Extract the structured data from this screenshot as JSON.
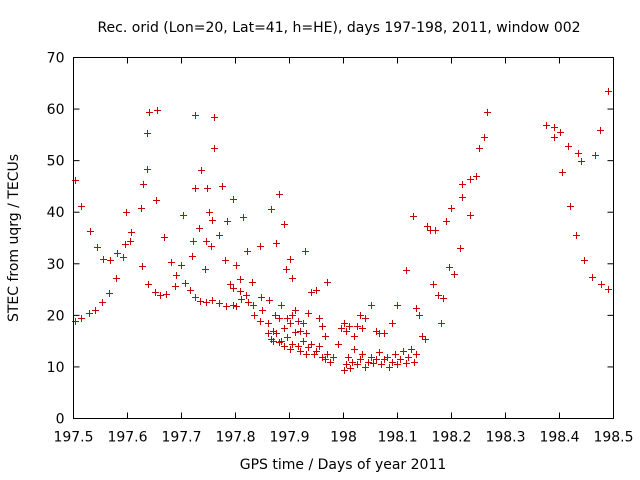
{
  "chart_data": {
    "type": "scatter",
    "title": "Rec. orid (Lon=20, Lat=41, h=HE), days 197-198, 2011, window 002",
    "xlabel": "GPS time / Days of year 2011",
    "ylabel": "STEC from uqrg / TECUs",
    "xlim": [
      197.5,
      198.5
    ],
    "ylim": [
      0,
      70
    ],
    "xticks": [
      197.5,
      197.6,
      197.7,
      197.8,
      197.9,
      198.0,
      198.1,
      198.2,
      198.3,
      198.4,
      198.5
    ],
    "xtick_labels": [
      "197.5",
      "197.6",
      "197.7",
      "197.8",
      "197.9",
      "198",
      "198.1",
      "198.2",
      "198.3",
      "198.4",
      "198.5"
    ],
    "yticks": [
      0,
      10,
      20,
      30,
      40,
      50,
      60,
      70
    ],
    "ytick_labels": [
      "0",
      "10",
      "20",
      "30",
      "40",
      "50",
      "60",
      "70"
    ],
    "marker": "+",
    "color": "#cc0000",
    "series": [
      {
        "name": "STEC",
        "points": [
          [
            197.502,
            46.2
          ],
          [
            197.513,
            41.3
          ],
          [
            197.53,
            36.3
          ],
          [
            197.543,
            33.3
          ],
          [
            197.555,
            31.0
          ],
          [
            197.568,
            30.7
          ],
          [
            197.58,
            32.0
          ],
          [
            197.592,
            31.3
          ],
          [
            197.595,
            33.8
          ],
          [
            197.597,
            40.0
          ],
          [
            197.605,
            34.5
          ],
          [
            197.607,
            36.2
          ],
          [
            197.625,
            40.8
          ],
          [
            197.628,
            45.4
          ],
          [
            197.637,
            48.4
          ],
          [
            197.637,
            55.4
          ],
          [
            197.64,
            59.5
          ],
          [
            197.655,
            59.8
          ],
          [
            197.652,
            42.3
          ],
          [
            197.667,
            35.2
          ],
          [
            197.68,
            30.3
          ],
          [
            197.627,
            29.5
          ],
          [
            197.638,
            26.0
          ],
          [
            197.65,
            24.5
          ],
          [
            197.66,
            24.0
          ],
          [
            197.672,
            24.2
          ],
          [
            197.502,
            19.0
          ],
          [
            197.513,
            19.5
          ],
          [
            197.528,
            20.4
          ],
          [
            197.54,
            21.0
          ],
          [
            197.553,
            22.5
          ],
          [
            197.565,
            24.3
          ],
          [
            197.578,
            27.2
          ],
          [
            197.688,
            25.7
          ],
          [
            197.69,
            27.8
          ],
          [
            197.7,
            29.8
          ],
          [
            197.702,
            39.5
          ],
          [
            197.707,
            26.3
          ],
          [
            197.72,
            31.5
          ],
          [
            197.722,
            34.5
          ],
          [
            197.725,
            44.6
          ],
          [
            197.733,
            37.0
          ],
          [
            197.737,
            48.1
          ],
          [
            197.743,
            29.0
          ],
          [
            197.745,
            34.5
          ],
          [
            197.748,
            44.7
          ],
          [
            197.75,
            40.0
          ],
          [
            197.755,
            33.5
          ],
          [
            197.757,
            38.4
          ],
          [
            197.76,
            52.5
          ],
          [
            197.76,
            58.5
          ],
          [
            197.725,
            58.9
          ],
          [
            197.77,
            35.5
          ],
          [
            197.775,
            45.0
          ],
          [
            197.78,
            30.8
          ],
          [
            197.785,
            38.3
          ],
          [
            197.795,
            42.5
          ],
          [
            197.8,
            29.8
          ],
          [
            197.808,
            27.0
          ],
          [
            197.813,
            39.0
          ],
          [
            197.822,
            32.5
          ],
          [
            197.83,
            26.5
          ],
          [
            197.845,
            33.5
          ],
          [
            197.848,
            23.5
          ],
          [
            197.865,
            40.7
          ],
          [
            197.875,
            34.0
          ],
          [
            197.88,
            43.5
          ],
          [
            197.89,
            37.8
          ],
          [
            197.893,
            29.0
          ],
          [
            197.9,
            31.0
          ],
          [
            197.905,
            27.2
          ],
          [
            197.928,
            32.5
          ],
          [
            197.715,
            25.0
          ],
          [
            197.725,
            23.5
          ],
          [
            197.735,
            22.8
          ],
          [
            197.745,
            22.5
          ],
          [
            197.757,
            23.0
          ],
          [
            197.77,
            22.3
          ],
          [
            197.782,
            21.9
          ],
          [
            197.795,
            22.0
          ],
          [
            197.8,
            21.8
          ],
          [
            197.79,
            26.0
          ],
          [
            197.795,
            25.4
          ],
          [
            197.808,
            24.8
          ],
          [
            197.81,
            23.2
          ],
          [
            197.82,
            24.0
          ],
          [
            197.823,
            22.5
          ],
          [
            197.833,
            22.0
          ],
          [
            197.835,
            20.0
          ],
          [
            197.845,
            19.0
          ],
          [
            197.85,
            21.0
          ],
          [
            197.86,
            18.5
          ],
          [
            197.862,
            23.0
          ],
          [
            197.87,
            17.0
          ],
          [
            197.873,
            20.0
          ],
          [
            197.88,
            19.5
          ],
          [
            197.885,
            22.0
          ],
          [
            197.89,
            17.5
          ],
          [
            197.895,
            19.5
          ],
          [
            197.9,
            18.5
          ],
          [
            197.905,
            20.0
          ],
          [
            197.91,
            21.0
          ],
          [
            197.915,
            19.0
          ],
          [
            197.92,
            17.0
          ],
          [
            197.925,
            18.5
          ],
          [
            197.93,
            16.5
          ],
          [
            197.935,
            20.5
          ],
          [
            197.94,
            24.5
          ],
          [
            197.95,
            25.0
          ],
          [
            197.955,
            19.5
          ],
          [
            197.96,
            18.0
          ],
          [
            197.965,
            16.0
          ],
          [
            197.97,
            26.5
          ],
          [
            197.86,
            16.5
          ],
          [
            197.865,
            15.5
          ],
          [
            197.87,
            15.0
          ],
          [
            197.875,
            16.5
          ],
          [
            197.88,
            14.8
          ],
          [
            197.885,
            15.0
          ],
          [
            197.89,
            14.0
          ],
          [
            197.895,
            15.8
          ],
          [
            197.9,
            13.5
          ],
          [
            197.905,
            14.5
          ],
          [
            197.91,
            16.8
          ],
          [
            197.915,
            14.0
          ],
          [
            197.92,
            13.0
          ],
          [
            197.925,
            15.0
          ],
          [
            197.93,
            12.5
          ],
          [
            197.935,
            13.8
          ],
          [
            197.94,
            14.5
          ],
          [
            197.945,
            12.5
          ],
          [
            197.95,
            13.0
          ],
          [
            197.955,
            14.0
          ],
          [
            197.96,
            12.0
          ],
          [
            197.965,
            11.5
          ],
          [
            197.97,
            12.5
          ],
          [
            197.975,
            11.0
          ],
          [
            197.98,
            12.0
          ],
          [
            197.99,
            14.5
          ],
          [
            197.995,
            17.5
          ],
          [
            198.0,
            9.5
          ],
          [
            198.005,
            10.5
          ],
          [
            198.008,
            12.0
          ],
          [
            198.012,
            9.8
          ],
          [
            198.015,
            11.0
          ],
          [
            198.02,
            13.5
          ],
          [
            198.025,
            10.5
          ],
          [
            198.03,
            11.5
          ],
          [
            198.035,
            12.5
          ],
          [
            198.04,
            10.0
          ],
          [
            198.045,
            11.0
          ],
          [
            198.05,
            12.0
          ],
          [
            198.055,
            10.8
          ],
          [
            198.06,
            11.5
          ],
          [
            198.065,
            12.8
          ],
          [
            198.07,
            10.5
          ],
          [
            198.075,
            11.5
          ],
          [
            198.08,
            12.0
          ],
          [
            198.085,
            10.0
          ],
          [
            198.09,
            11.0
          ],
          [
            198.095,
            12.5
          ],
          [
            198.1,
            10.5
          ],
          [
            198.105,
            11.5
          ],
          [
            198.11,
            13.0
          ],
          [
            198.115,
            10.8
          ],
          [
            198.12,
            12.0
          ],
          [
            198.125,
            13.5
          ],
          [
            198.13,
            11.0
          ],
          [
            198.135,
            12.5
          ],
          [
            198.0,
            18.5
          ],
          [
            198.005,
            17.0
          ],
          [
            198.01,
            18.0
          ],
          [
            198.02,
            16.0
          ],
          [
            198.025,
            18.0
          ],
          [
            198.03,
            20.0
          ],
          [
            198.035,
            17.5
          ],
          [
            198.04,
            19.5
          ],
          [
            198.05,
            22.0
          ],
          [
            198.06,
            17.0
          ],
          [
            198.065,
            16.5
          ],
          [
            198.075,
            16.5
          ],
          [
            198.09,
            18.5
          ],
          [
            198.1,
            22.0
          ],
          [
            198.115,
            28.8
          ],
          [
            198.128,
            39.3
          ],
          [
            198.135,
            21.5
          ],
          [
            198.14,
            20.0
          ],
          [
            198.145,
            16.0
          ],
          [
            198.15,
            15.5
          ],
          [
            198.155,
            37.3
          ],
          [
            198.16,
            36.5
          ],
          [
            198.165,
            26.0
          ],
          [
            198.17,
            36.5
          ],
          [
            198.175,
            24.0
          ],
          [
            198.18,
            18.5
          ],
          [
            198.185,
            23.3
          ],
          [
            198.19,
            38.3
          ],
          [
            198.195,
            29.3
          ],
          [
            198.2,
            40.8
          ],
          [
            198.205,
            28.0
          ],
          [
            198.215,
            33.0
          ],
          [
            198.22,
            43.0
          ],
          [
            198.22,
            45.5
          ],
          [
            198.235,
            39.5
          ],
          [
            198.235,
            46.5
          ],
          [
            198.245,
            47.0
          ],
          [
            198.25,
            52.5
          ],
          [
            198.26,
            54.5
          ],
          [
            198.265,
            59.5
          ],
          [
            198.375,
            57.0
          ],
          [
            198.39,
            56.5
          ],
          [
            198.39,
            54.5
          ],
          [
            198.4,
            55.5
          ],
          [
            198.405,
            47.8
          ],
          [
            198.415,
            52.8
          ],
          [
            198.42,
            41.3
          ],
          [
            198.43,
            35.5
          ],
          [
            198.435,
            51.5
          ],
          [
            198.44,
            50.0
          ],
          [
            198.445,
            30.8
          ],
          [
            198.46,
            27.5
          ],
          [
            198.465,
            51.0
          ],
          [
            198.475,
            56.0
          ],
          [
            198.477,
            26.0
          ],
          [
            198.49,
            25.2
          ],
          [
            198.49,
            63.5
          ]
        ]
      }
    ]
  }
}
